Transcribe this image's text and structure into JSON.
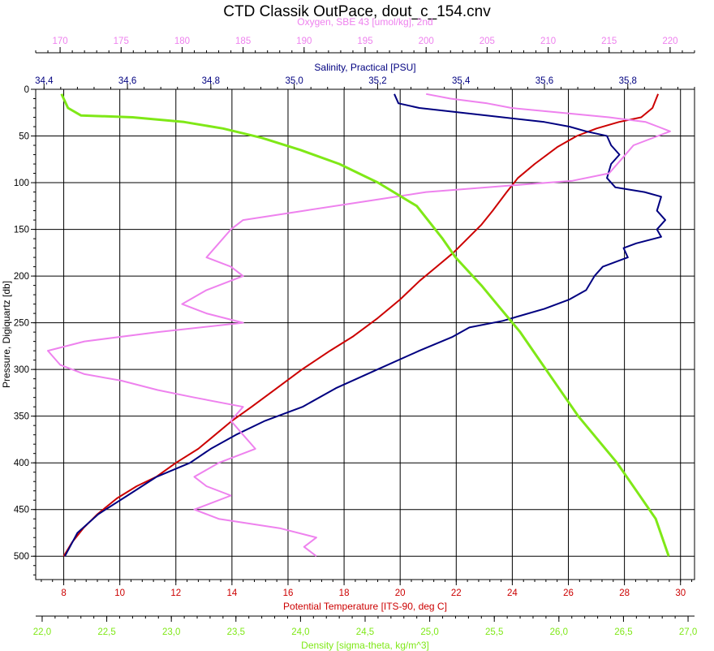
{
  "chart_data": {
    "type": "line",
    "title": "CTD Classik OutPace, dout_c_154.cnv",
    "ylabel": "Pressure, Digiquartz [db]",
    "y_inverted": true,
    "ylim": [
      0,
      525
    ],
    "y_ticks": [
      "0",
      "50",
      "100",
      "150",
      "200",
      "250",
      "300",
      "350",
      "400",
      "450",
      "500"
    ],
    "grid": true,
    "axes": {
      "oxygen": {
        "label": "Oxygen, SBE 43 [umol/kg], 2nd",
        "position": "top",
        "color": "#EE82EE",
        "range": [
          168,
          222
        ],
        "ticks": [
          "170",
          "175",
          "180",
          "185",
          "190",
          "195",
          "200",
          "205",
          "210",
          "215",
          "220"
        ]
      },
      "salinity": {
        "label": "Salinity, Practical [PSU]",
        "position": "top",
        "color": "#000080",
        "range": [
          34.38,
          35.96
        ],
        "ticks": [
          "34,4",
          "34,6",
          "34,8",
          "35,0",
          "35,2",
          "35,4",
          "35,6",
          "35,8"
        ]
      },
      "temperature": {
        "label": "Potential Temperature [ITS-90, deg C]",
        "position": "bottom",
        "color": "#CC0000",
        "range": [
          7.0,
          30.5
        ],
        "ticks": [
          "8",
          "10",
          "12",
          "14",
          "16",
          "18",
          "20",
          "22",
          "24",
          "26",
          "28",
          "30"
        ]
      },
      "density": {
        "label": "Density [sigma-theta, kg/m^3]",
        "position": "bottom",
        "color": "#7FE817",
        "range": [
          21.95,
          27.05
        ],
        "ticks": [
          "22,0",
          "22,5",
          "23,0",
          "23,5",
          "24,0",
          "24,5",
          "25,0",
          "25,5",
          "26,0",
          "26,5",
          "27,0"
        ]
      }
    },
    "series": [
      {
        "axis": "temperature",
        "color": "#CC0000",
        "points": [
          [
            29.2,
            5
          ],
          [
            29.0,
            20
          ],
          [
            28.6,
            30
          ],
          [
            27.8,
            35
          ],
          [
            27.0,
            42
          ],
          [
            26.3,
            50
          ],
          [
            25.6,
            62
          ],
          [
            24.8,
            80
          ],
          [
            24.2,
            95
          ],
          [
            23.8,
            110
          ],
          [
            23.3,
            130
          ],
          [
            22.9,
            145
          ],
          [
            22.4,
            160
          ],
          [
            21.9,
            175
          ],
          [
            21.3,
            190
          ],
          [
            20.7,
            205
          ],
          [
            20.0,
            225
          ],
          [
            19.2,
            245
          ],
          [
            18.3,
            265
          ],
          [
            17.5,
            280
          ],
          [
            16.5,
            300
          ],
          [
            15.6,
            320
          ],
          [
            14.7,
            340
          ],
          [
            14.0,
            355
          ],
          [
            13.4,
            370
          ],
          [
            12.8,
            385
          ],
          [
            12.0,
            400
          ],
          [
            11.3,
            415
          ],
          [
            10.6,
            425
          ],
          [
            9.9,
            438
          ],
          [
            9.2,
            455
          ],
          [
            8.7,
            470
          ],
          [
            8.3,
            485
          ],
          [
            8.0,
            500
          ]
        ]
      },
      {
        "axis": "salinity",
        "color": "#000080",
        "points": [
          [
            35.24,
            5
          ],
          [
            35.25,
            15
          ],
          [
            35.3,
            20
          ],
          [
            35.4,
            25
          ],
          [
            35.5,
            30
          ],
          [
            35.6,
            35
          ],
          [
            35.66,
            40
          ],
          [
            35.7,
            45
          ],
          [
            35.75,
            50
          ],
          [
            35.76,
            60
          ],
          [
            35.78,
            70
          ],
          [
            35.76,
            80
          ],
          [
            35.75,
            95
          ],
          [
            35.77,
            105
          ],
          [
            35.84,
            110
          ],
          [
            35.88,
            115
          ],
          [
            35.87,
            130
          ],
          [
            35.89,
            140
          ],
          [
            35.87,
            150
          ],
          [
            35.88,
            158
          ],
          [
            35.82,
            165
          ],
          [
            35.79,
            170
          ],
          [
            35.8,
            180
          ],
          [
            35.74,
            190
          ],
          [
            35.72,
            200
          ],
          [
            35.7,
            215
          ],
          [
            35.66,
            225
          ],
          [
            35.6,
            235
          ],
          [
            35.5,
            248
          ],
          [
            35.42,
            255
          ],
          [
            35.38,
            265
          ],
          [
            35.3,
            280
          ],
          [
            35.2,
            300
          ],
          [
            35.1,
            320
          ],
          [
            35.02,
            340
          ],
          [
            34.93,
            355
          ],
          [
            34.86,
            370
          ],
          [
            34.8,
            385
          ],
          [
            34.75,
            400
          ],
          [
            34.67,
            415
          ],
          [
            34.6,
            435
          ],
          [
            34.53,
            455
          ],
          [
            34.48,
            475
          ],
          [
            34.45,
            500
          ]
        ]
      },
      {
        "axis": "oxygen",
        "color": "#EE82EE",
        "points": [
          [
            200,
            5
          ],
          [
            202,
            10
          ],
          [
            205,
            15
          ],
          [
            207,
            20
          ],
          [
            211,
            25
          ],
          [
            215,
            30
          ],
          [
            218,
            35
          ],
          [
            219,
            40
          ],
          [
            220,
            45
          ],
          [
            219,
            50
          ],
          [
            217,
            60
          ],
          [
            216,
            75
          ],
          [
            215,
            90
          ],
          [
            212,
            98
          ],
          [
            208,
            102
          ],
          [
            200,
            110
          ],
          [
            195,
            120
          ],
          [
            190,
            130
          ],
          [
            185,
            140
          ],
          [
            184,
            150
          ],
          [
            183,
            165
          ],
          [
            182,
            180
          ],
          [
            184,
            190
          ],
          [
            185,
            200
          ],
          [
            182,
            215
          ],
          [
            180,
            230
          ],
          [
            182,
            240
          ],
          [
            185,
            250
          ],
          [
            178,
            260
          ],
          [
            172,
            270
          ],
          [
            169,
            280
          ],
          [
            170,
            295
          ],
          [
            172,
            305
          ],
          [
            175,
            312
          ],
          [
            178,
            322
          ],
          [
            181,
            330
          ],
          [
            185,
            340
          ],
          [
            184,
            355
          ],
          [
            185,
            370
          ],
          [
            186,
            385
          ],
          [
            183,
            400
          ],
          [
            181,
            415
          ],
          [
            182,
            425
          ],
          [
            184,
            435
          ],
          [
            181,
            450
          ],
          [
            183,
            460
          ],
          [
            188,
            470
          ],
          [
            191,
            480
          ],
          [
            190,
            490
          ],
          [
            191,
            500
          ]
        ]
      },
      {
        "axis": "density",
        "color": "#7FE817",
        "points": [
          [
            22.15,
            5
          ],
          [
            22.2,
            20
          ],
          [
            22.3,
            28
          ],
          [
            22.7,
            30
          ],
          [
            23.1,
            35
          ],
          [
            23.4,
            42
          ],
          [
            23.7,
            52
          ],
          [
            24.0,
            65
          ],
          [
            24.3,
            80
          ],
          [
            24.6,
            100
          ],
          [
            24.9,
            125
          ],
          [
            25.1,
            160
          ],
          [
            25.2,
            180
          ],
          [
            25.4,
            210
          ],
          [
            25.55,
            235
          ],
          [
            25.7,
            260
          ],
          [
            25.85,
            290
          ],
          [
            26.0,
            320
          ],
          [
            26.15,
            350
          ],
          [
            26.3,
            375
          ],
          [
            26.45,
            400
          ],
          [
            26.6,
            430
          ],
          [
            26.75,
            460
          ],
          [
            26.85,
            500
          ]
        ]
      }
    ]
  }
}
